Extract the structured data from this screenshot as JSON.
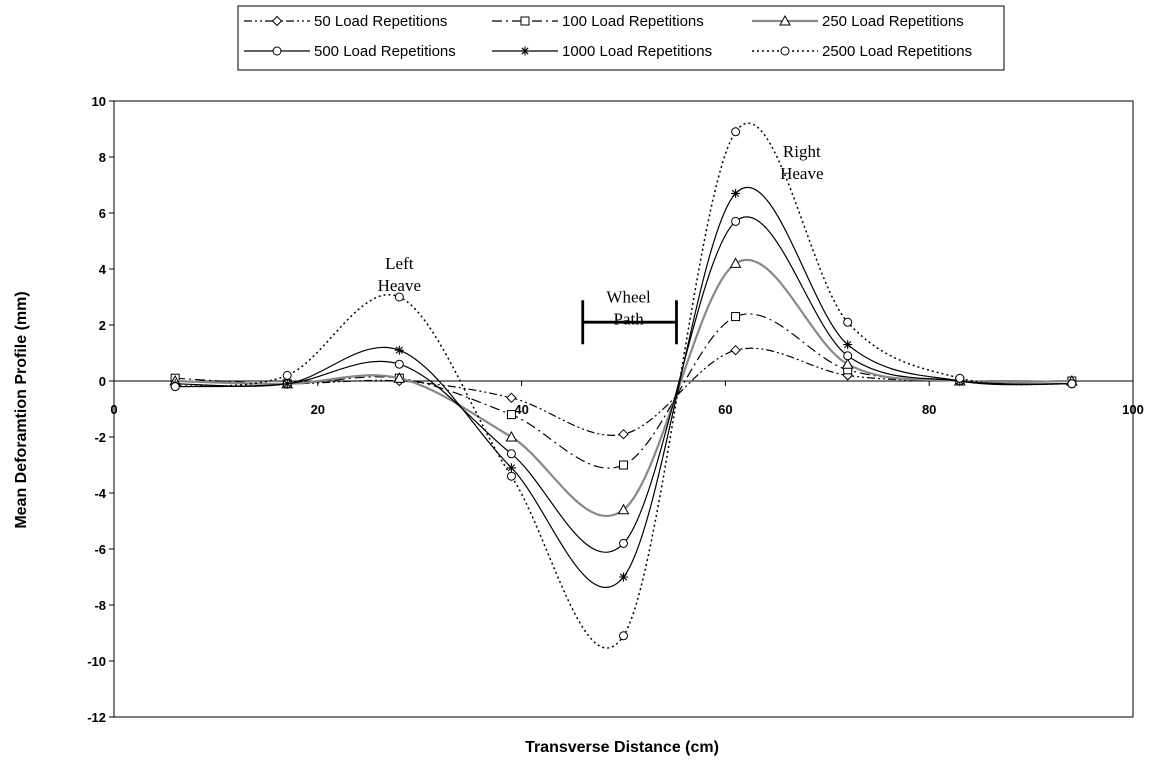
{
  "chart_data": {
    "type": "line",
    "title": "",
    "xlabel": "Transverse Distance (cm)",
    "ylabel": "Mean Deforamtion Profile (mm)",
    "xlim": [
      0,
      100
    ],
    "ylim": [
      -12,
      10
    ],
    "xticks": [
      0,
      20,
      40,
      60,
      80,
      100
    ],
    "yticks": [
      -12,
      -10,
      -8,
      -6,
      -4,
      -2,
      0,
      2,
      4,
      6,
      8,
      10
    ],
    "grid": false,
    "legend_position": "top",
    "x": [
      6,
      17,
      28,
      39,
      50,
      61,
      72,
      83,
      94
    ],
    "series": [
      {
        "name": "50 Load Repetitions",
        "values": [
          0.0,
          -0.1,
          0.0,
          -0.6,
          -1.9,
          1.1,
          0.2,
          0.0,
          0.0
        ],
        "marker": "diamond",
        "dash": "8,3,2,3,2,3",
        "color": "#000000",
        "width": 1.2
      },
      {
        "name": "100 Load Repetitions",
        "values": [
          0.1,
          -0.1,
          0.1,
          -1.2,
          -3.0,
          2.3,
          0.4,
          0.0,
          0.0
        ],
        "marker": "square",
        "dash": "10,4,2,4",
        "color": "#000000",
        "width": 1.2
      },
      {
        "name": "250 Load Repetitions",
        "values": [
          0.0,
          -0.1,
          0.1,
          -2.0,
          -4.6,
          4.2,
          0.6,
          0.0,
          0.0
        ],
        "marker": "triangle",
        "dash": "",
        "color": "#888888",
        "width": 2.2
      },
      {
        "name": "500 Load Repetitions",
        "values": [
          -0.2,
          -0.1,
          0.6,
          -2.6,
          -5.8,
          5.7,
          0.9,
          0.0,
          -0.1
        ],
        "marker": "circle",
        "dash": "",
        "color": "#000000",
        "width": 1.2
      },
      {
        "name": "1000 Load Repetitions",
        "values": [
          -0.1,
          -0.1,
          1.1,
          -3.1,
          -7.0,
          6.7,
          1.3,
          0.0,
          -0.1
        ],
        "marker": "star",
        "dash": "",
        "color": "#000000",
        "width": 1.2
      },
      {
        "name": "2500 Load Repetitions",
        "values": [
          -0.2,
          0.2,
          3.0,
          -3.4,
          -9.1,
          8.9,
          2.1,
          0.1,
          -0.1
        ],
        "marker": "circle",
        "dash": "2,3",
        "color": "#000000",
        "width": 1.5
      }
    ],
    "annotations": [
      {
        "lines": [
          "Left",
          "Heave"
        ],
        "x": 28,
        "y": 4.0
      },
      {
        "lines": [
          "Wheel",
          "Path"
        ],
        "x": 50.5,
        "y": 2.8
      },
      {
        "lines": [
          "Right",
          "Heave"
        ],
        "x": 67.5,
        "y": 8.0
      }
    ],
    "wheel_path_bracket": {
      "x_start": 46,
      "x_end": 55.2,
      "y": 2.1
    }
  }
}
